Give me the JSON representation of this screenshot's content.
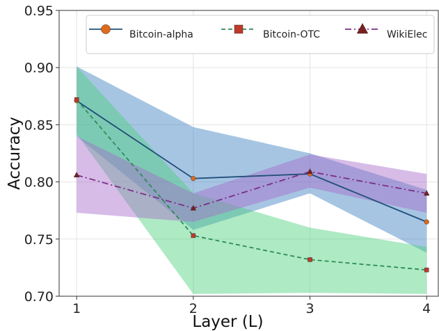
{
  "chart_data": {
    "type": "line",
    "title": "",
    "xlabel": "Layer (L)",
    "ylabel": "Accuracy",
    "x": [
      1,
      2,
      3,
      4
    ],
    "xlim": [
      0.85,
      4.1
    ],
    "ylim": [
      0.7,
      0.95
    ],
    "xticks": [
      "1",
      "2",
      "3",
      "4"
    ],
    "yticks": [
      "0.70",
      "0.75",
      "0.80",
      "0.85",
      "0.90",
      "0.95"
    ],
    "grid": true,
    "legend_position": "top",
    "series": [
      {
        "name": "Bitcoin-alpha",
        "values": [
          0.871,
          0.803,
          0.807,
          0.765
        ],
        "lower": [
          0.84,
          0.758,
          0.79,
          0.738
        ],
        "upper": [
          0.901,
          0.848,
          0.825,
          0.793
        ],
        "color": "#1f4e79",
        "marker_color": "#e06a1a",
        "fill_color": "#3a7fbf",
        "marker": "circle",
        "line_style": "solid"
      },
      {
        "name": "Bitcoin-OTC",
        "values": [
          0.872,
          0.753,
          0.732,
          0.723
        ],
        "lower": [
          0.842,
          0.702,
          0.703,
          0.702
        ],
        "upper": [
          0.901,
          0.79,
          0.76,
          0.743
        ],
        "color": "#2e8b57",
        "marker_color": "#c0392b",
        "fill_color": "#4cd17d",
        "marker": "square",
        "line_style": "dashed"
      },
      {
        "name": "WikiElec",
        "values": [
          0.806,
          0.777,
          0.809,
          0.79
        ],
        "lower": [
          0.773,
          0.765,
          0.795,
          0.773
        ],
        "upper": [
          0.84,
          0.79,
          0.824,
          0.807
        ],
        "color": "#7b2d8b",
        "marker_color": "#7a1f1f",
        "fill_color": "#a66bc9",
        "marker": "triangle",
        "line_style": "dashdot"
      }
    ]
  }
}
